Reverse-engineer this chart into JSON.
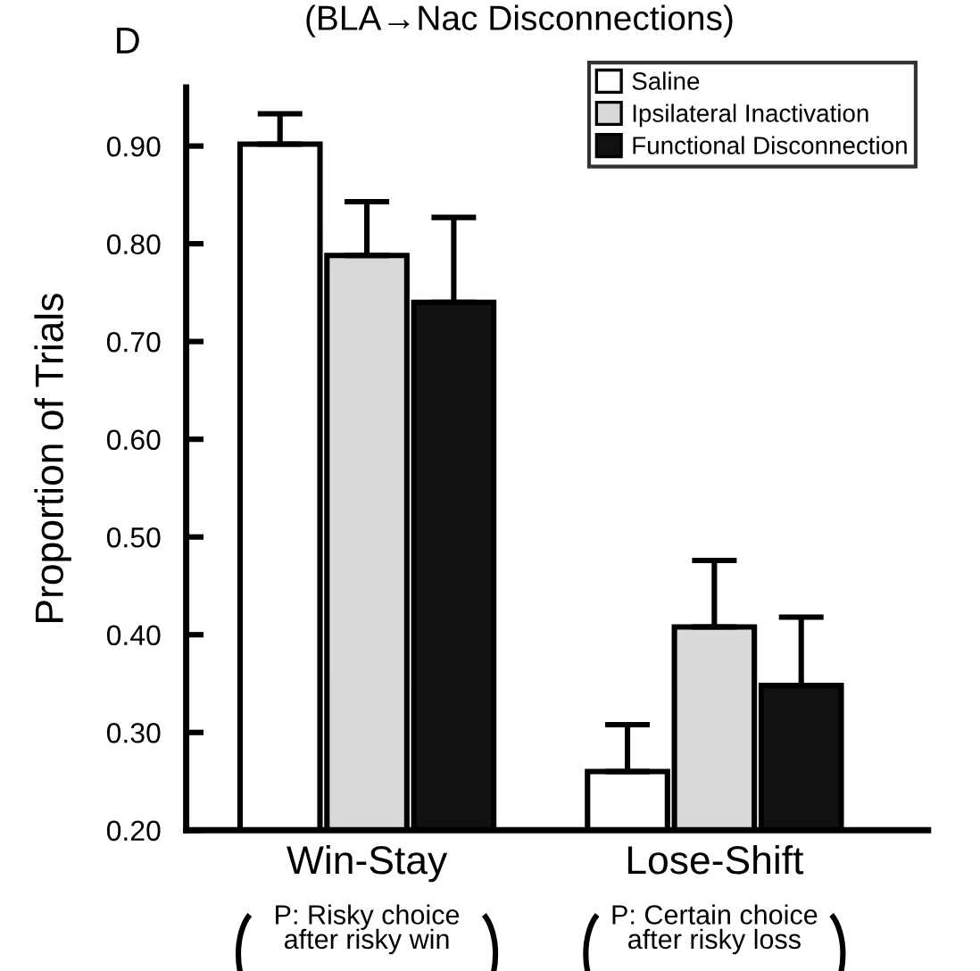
{
  "chart_data": {
    "type": "bar",
    "title": "(BLA→Nac Disconnections)",
    "ylabel": "Proportion of Trials",
    "categories": [
      "Win-Stay",
      "Lose-Shift"
    ],
    "series": [
      {
        "name": "Saline",
        "color": "#ffffff",
        "values": [
          0.902,
          0.26
        ],
        "errors": [
          [
            0.902,
            0.933
          ],
          [
            0.26,
            0.308
          ]
        ]
      },
      {
        "name": "Ipsilateral Inactivation",
        "color": "#d9d9d9",
        "values": [
          0.788,
          0.408
        ],
        "errors": [
          [
            0.788,
            0.843
          ],
          [
            0.408,
            0.476
          ]
        ]
      },
      {
        "name": "Functional Disconnection",
        "color": "#111111",
        "values": [
          0.74,
          0.348
        ],
        "errors": [
          [
            0.74,
            0.827
          ],
          [
            0.348,
            0.418
          ]
        ]
      }
    ],
    "annotations": [
      "D",
      "P: Risky choice\nafter risky win",
      "P: Certain choice\nafter risky loss"
    ],
    "ylim": [
      0.2,
      0.96
    ],
    "yticks": [
      {
        "value": 0.2,
        "label": "0.20"
      },
      {
        "value": 0.3,
        "label": "0.30"
      },
      {
        "value": 0.4,
        "label": "0.40"
      },
      {
        "value": 0.5,
        "label": "0.50"
      },
      {
        "value": 0.6,
        "label": "0.60"
      },
      {
        "value": 0.7,
        "label": "0.70"
      },
      {
        "value": 0.8,
        "label": "0.80"
      },
      {
        "value": 0.9,
        "label": "0.90"
      }
    ],
    "grid": false,
    "legend": "top right"
  }
}
